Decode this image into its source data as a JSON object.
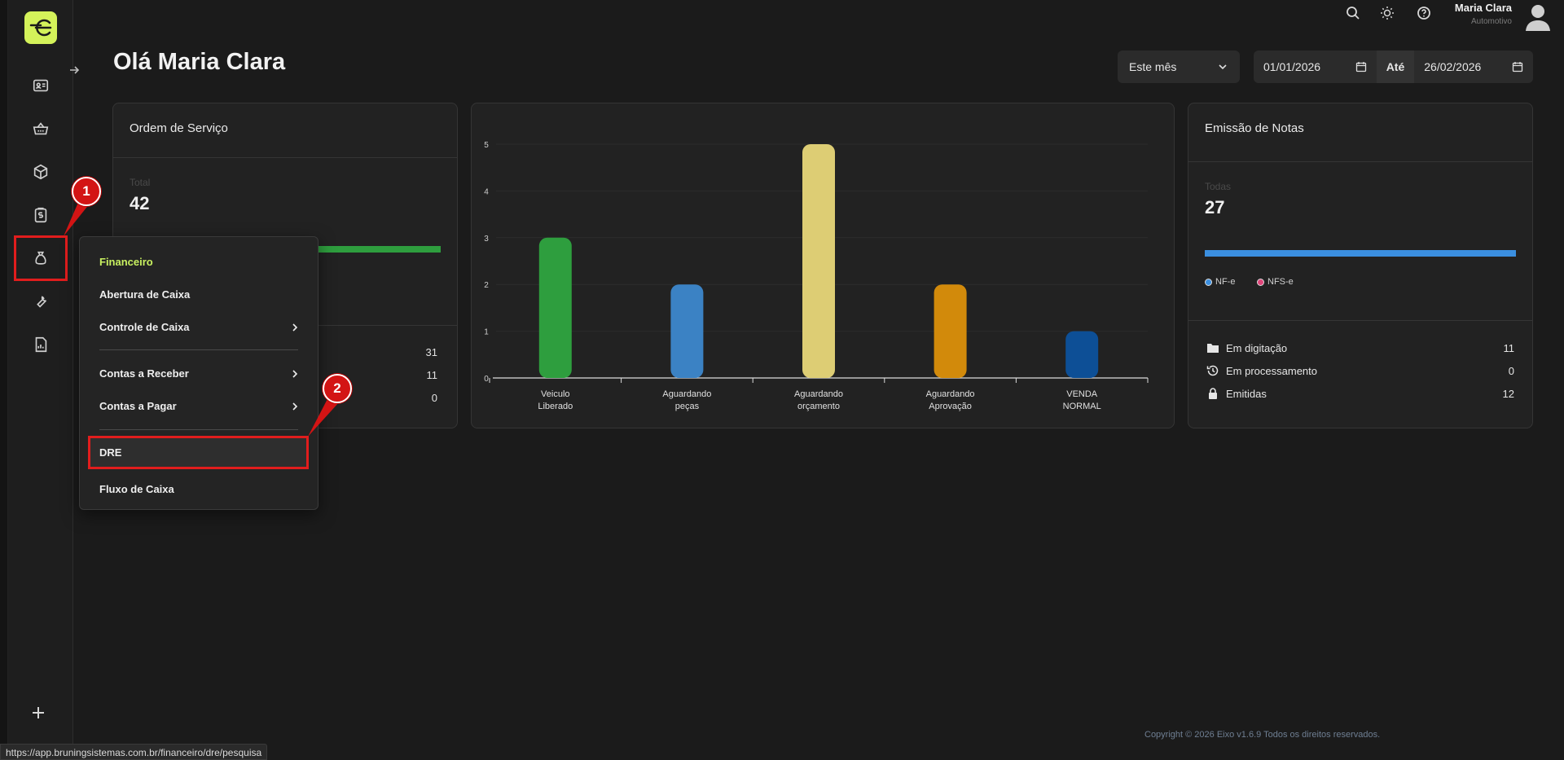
{
  "user": {
    "name": "Maria Clara",
    "role": "Automotivo"
  },
  "greeting": "Olá Maria Clara",
  "period": {
    "select_value": "Este mês",
    "start_date": "01/01/2026",
    "separator": "Até",
    "end_date": "26/02/2026"
  },
  "ordem_servico": {
    "title": "Ordem de Serviço",
    "total_label": "Total",
    "total_value": "42",
    "rows": [
      "31",
      "11",
      "0"
    ]
  },
  "chart_data": {
    "type": "bar",
    "categories": [
      "Veiculo Liberado",
      "Aguardando peças",
      "Aguardando orçamento",
      "Aguardando Aprovação",
      "VENDA NORMAL"
    ],
    "category_lines": [
      [
        "Veiculo",
        "Liberado"
      ],
      [
        "Aguardando",
        "peças"
      ],
      [
        "Aguardando",
        "orçamento"
      ],
      [
        "Aguardando",
        "Aprovação"
      ],
      [
        "VENDA",
        "NORMAL"
      ]
    ],
    "values": [
      3,
      2,
      5,
      2,
      1
    ],
    "colors": [
      "#2e9e3e",
      "#3b82c4",
      "#ddcd74",
      "#d28a0b",
      "#0d4f96"
    ],
    "yticks": [
      "0",
      "1",
      "2",
      "3",
      "4",
      "5"
    ],
    "ylim": [
      0,
      5
    ],
    "grid": true
  },
  "notas": {
    "title": "Emissão de Notas",
    "label": "Todas",
    "value": "27",
    "legend": [
      {
        "label": "NF-e",
        "color": "#3b8fe0"
      },
      {
        "label": "NFS-e",
        "color": "#e0457a"
      }
    ],
    "stats": [
      {
        "icon": "folder-icon",
        "label": "Em digitação",
        "value": "11"
      },
      {
        "icon": "history-icon",
        "label": "Em processamento",
        "value": "0"
      },
      {
        "icon": "lock-icon",
        "label": "Emitidas",
        "value": "12"
      }
    ]
  },
  "menu": {
    "header": "Financeiro",
    "items": [
      {
        "label": "Abertura de Caixa"
      },
      {
        "label": "Controle de Caixa"
      },
      {
        "label": "Contas a Receber"
      },
      {
        "label": "Contas a Pagar"
      },
      {
        "label": "DRE"
      },
      {
        "label": "Fluxo de Caixa"
      }
    ]
  },
  "annotations": [
    "1",
    "2"
  ],
  "footer": "Copyright © 2026 Eixo v1.6.9 Todos os direitos reservados.",
  "status_url": "https://app.bruningsistemas.com.br/financeiro/dre/pesquisa",
  "colors": {
    "accent": "#d4f25a",
    "highlight": "#e11d1d"
  }
}
